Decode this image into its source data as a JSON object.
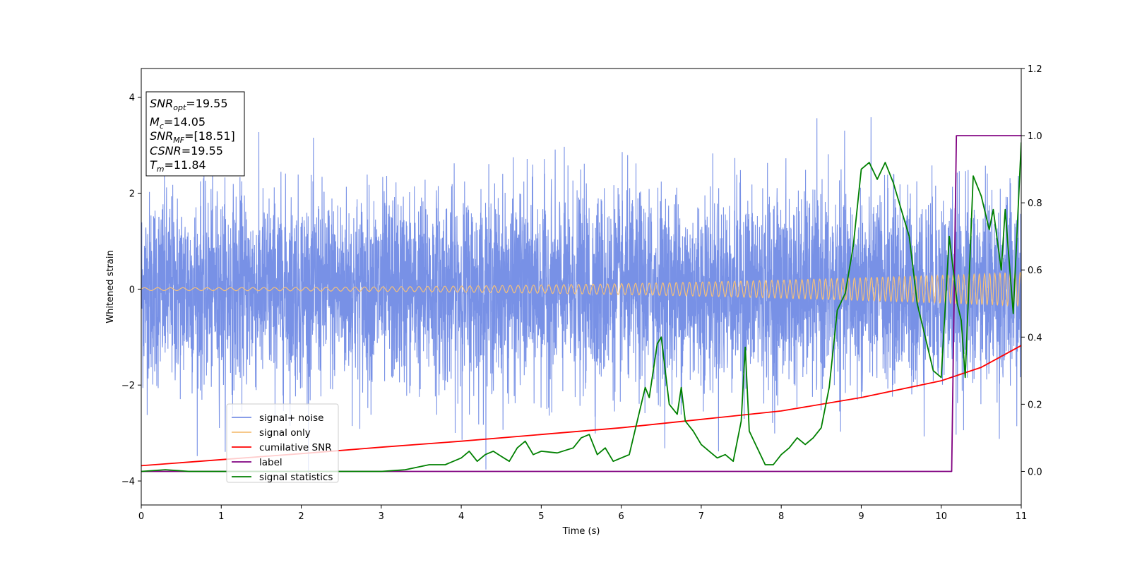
{
  "chart_data": {
    "type": "line",
    "xlabel": "Time (s)",
    "ylabel": "Whitened strain",
    "xlim": [
      0,
      11
    ],
    "ylim_left": [
      -4.5,
      4.6
    ],
    "ylim_right": [
      -0.1,
      1.2
    ],
    "x_ticks": [
      "0",
      "1",
      "2",
      "3",
      "4",
      "5",
      "6",
      "7",
      "8",
      "9",
      "10",
      "11"
    ],
    "y_left_ticks": [
      "4",
      "2",
      "0",
      "−2",
      "−4"
    ],
    "y_left_tick_values": [
      4,
      2,
      0,
      -2,
      -4
    ],
    "y_right_ticks": [
      "1.2",
      "1.0",
      "0.8",
      "0.6",
      "0.4",
      "0.2",
      "0.0"
    ],
    "y_right_tick_values": [
      1.2,
      1.0,
      0.8,
      0.6,
      0.4,
      0.2,
      0.0
    ],
    "annotation": {
      "snr_opt": {
        "label": "SNR",
        "sub": "opt",
        "value": "=19.55"
      },
      "mc": {
        "label": "M",
        "sub": "c",
        "value": "=14.05"
      },
      "snr_mf": {
        "label": "SNR",
        "sub": "MF",
        "value": "=[18.51]"
      },
      "csnr": {
        "label": "CSNR",
        "value": "=19.55"
      },
      "tm": {
        "label": "T",
        "sub": "m",
        "value": "=11.84"
      }
    },
    "series": [
      {
        "name": "signal+ noise",
        "color": "#7891e6",
        "axis": "left",
        "description_note": "dense noisy trace, std about 1.0, range about -3.8 to 4.1"
      },
      {
        "name": "signal only",
        "color": "#f5c07a",
        "axis": "left",
        "amplitude_start": 0.03,
        "amplitude_end": 0.35
      },
      {
        "name": "cumilative SNR",
        "color": "#ff0000",
        "axis": "right",
        "x": [
          0,
          1,
          2,
          3,
          4,
          5,
          6,
          7,
          8,
          9,
          10,
          10.5,
          11
        ],
        "y": [
          0.017,
          0.035,
          0.053,
          0.072,
          0.09,
          0.11,
          0.13,
          0.155,
          0.18,
          0.22,
          0.27,
          0.31,
          0.375
        ]
      },
      {
        "name": "label",
        "color": "#800080",
        "axis": "right",
        "x": [
          0,
          10.13,
          10.19,
          11
        ],
        "y": [
          0.0,
          0.0,
          1.0,
          1.0
        ]
      },
      {
        "name": "signal statistics",
        "color": "#008000",
        "axis": "right",
        "x": [
          0,
          0.3,
          0.6,
          1.0,
          1.5,
          2.0,
          2.5,
          3.0,
          3.3,
          3.6,
          3.8,
          4.0,
          4.1,
          4.2,
          4.3,
          4.4,
          4.5,
          4.6,
          4.7,
          4.8,
          4.9,
          5.0,
          5.2,
          5.4,
          5.5,
          5.6,
          5.7,
          5.8,
          5.9,
          6.0,
          6.1,
          6.2,
          6.3,
          6.35,
          6.45,
          6.5,
          6.6,
          6.7,
          6.75,
          6.8,
          6.9,
          7.0,
          7.1,
          7.2,
          7.3,
          7.4,
          7.5,
          7.55,
          7.6,
          7.7,
          7.8,
          7.9,
          8.0,
          8.1,
          8.2,
          8.3,
          8.4,
          8.5,
          8.6,
          8.7,
          8.8,
          8.9,
          9.0,
          9.1,
          9.2,
          9.3,
          9.4,
          9.5,
          9.6,
          9.7,
          9.8,
          9.9,
          10.0,
          10.1,
          10.2,
          10.25,
          10.3,
          10.4,
          10.5,
          10.6,
          10.65,
          10.75,
          10.8,
          10.9,
          11.0
        ],
        "y": [
          0.0,
          0.005,
          0.0,
          0.0,
          0.0,
          0.0,
          0.0,
          0.0,
          0.005,
          0.02,
          0.02,
          0.04,
          0.06,
          0.03,
          0.05,
          0.06,
          0.045,
          0.03,
          0.07,
          0.09,
          0.05,
          0.06,
          0.055,
          0.07,
          0.1,
          0.11,
          0.05,
          0.07,
          0.03,
          0.04,
          0.05,
          0.15,
          0.25,
          0.22,
          0.38,
          0.4,
          0.2,
          0.17,
          0.25,
          0.15,
          0.12,
          0.08,
          0.06,
          0.04,
          0.05,
          0.03,
          0.15,
          0.37,
          0.12,
          0.07,
          0.02,
          0.02,
          0.05,
          0.07,
          0.1,
          0.08,
          0.1,
          0.13,
          0.25,
          0.48,
          0.53,
          0.67,
          0.9,
          0.92,
          0.87,
          0.92,
          0.86,
          0.78,
          0.7,
          0.5,
          0.4,
          0.3,
          0.28,
          0.7,
          0.5,
          0.45,
          0.28,
          0.88,
          0.82,
          0.72,
          0.78,
          0.6,
          0.78,
          0.47,
          0.98
        ]
      }
    ],
    "legend_position": "lower-left"
  }
}
